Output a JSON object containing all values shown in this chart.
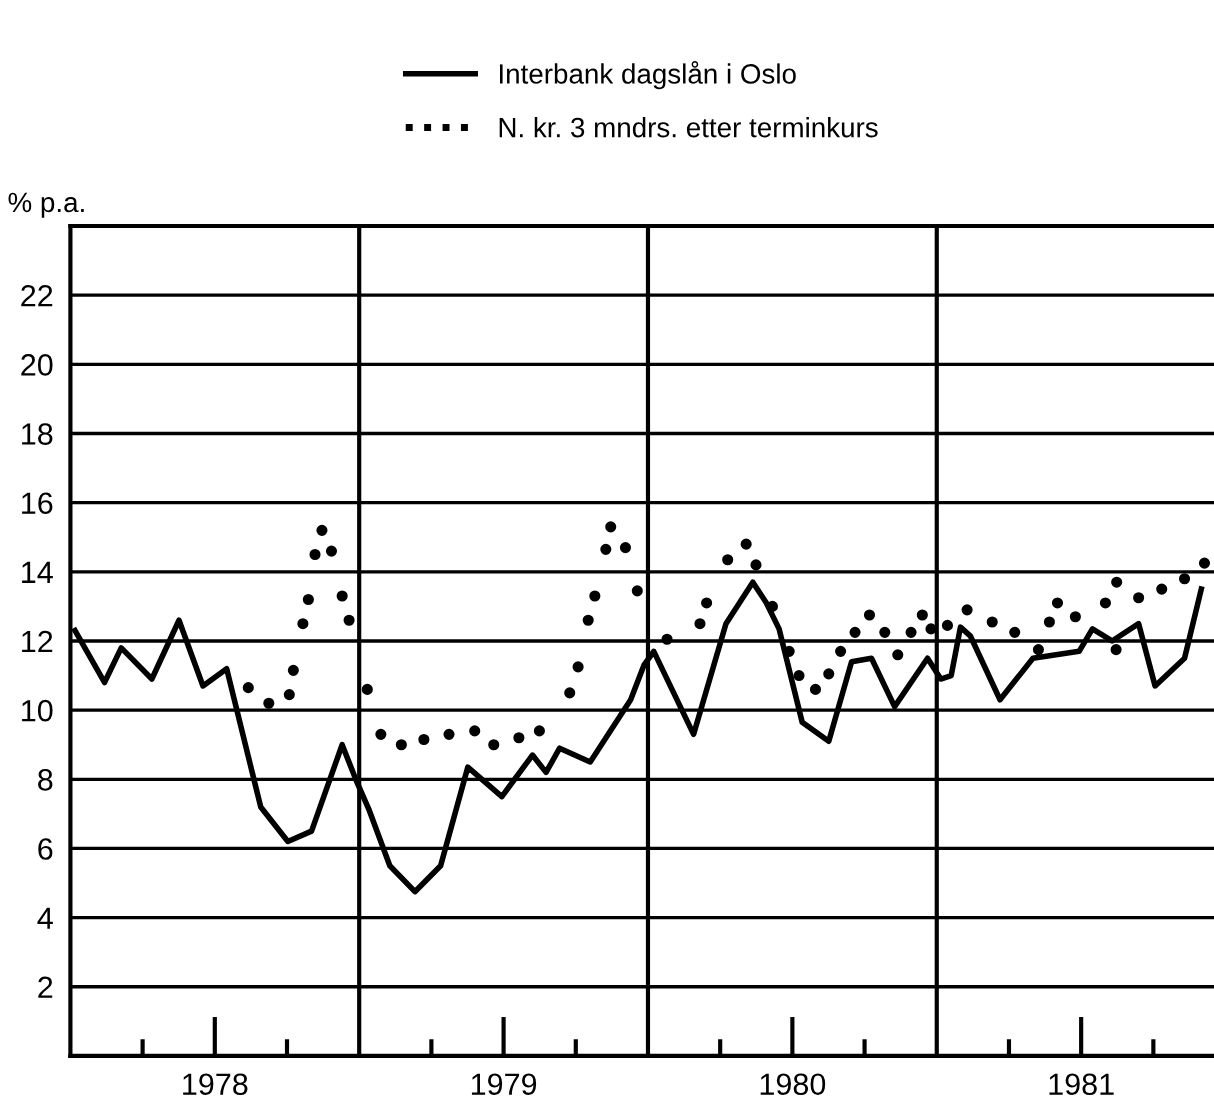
{
  "chart_data": {
    "type": "line",
    "ylabel": "% p.a.",
    "legend": "top",
    "xlim": [
      1978,
      1981.96
    ],
    "ylim": [
      0,
      24
    ],
    "xticks": [
      {
        "value": 1978.25,
        "label": null
      },
      {
        "value": 1978.5,
        "label": "1978"
      },
      {
        "value": 1978.75,
        "label": null
      },
      {
        "value": 1979.25,
        "label": null
      },
      {
        "value": 1979.5,
        "label": "1979"
      },
      {
        "value": 1979.75,
        "label": null
      },
      {
        "value": 1980.25,
        "label": null
      },
      {
        "value": 1980.5,
        "label": "1980"
      },
      {
        "value": 1980.75,
        "label": null
      },
      {
        "value": 1981.25,
        "label": null
      },
      {
        "value": 1981.5,
        "label": "1981"
      },
      {
        "value": 1981.75,
        "label": null
      }
    ],
    "yticks": [
      2,
      4,
      6,
      8,
      10,
      12,
      14,
      16,
      18,
      20,
      22
    ],
    "grid": "y",
    "ref_lines": [
      {
        "axis": "x",
        "value": 1979,
        "color": "#000000"
      },
      {
        "axis": "x",
        "value": 1980,
        "color": "#000000"
      },
      {
        "axis": "x",
        "value": 1981,
        "color": "#000000"
      }
    ],
    "series": [
      {
        "name": "Interbank dagslån i Oslo",
        "color": "#000000",
        "line_style": "solid",
        "marker": "none",
        "x": [
          1978.016,
          1978.118,
          1978.176,
          1978.282,
          1978.376,
          1978.459,
          1978.541,
          1978.659,
          1978.753,
          1978.835,
          1978.941,
          1978.988,
          1979.035,
          1979.106,
          1979.193,
          1979.282,
          1979.376,
          1979.494,
          1979.6,
          1979.647,
          1979.694,
          1979.8,
          1979.94,
          1979.986,
          1980.02,
          1980.158,
          1980.27,
          1980.363,
          1980.41,
          1980.454,
          1980.534,
          1980.626,
          1980.705,
          1980.774,
          1980.854,
          1980.968,
          1981.014,
          1981.05,
          1981.082,
          1981.116,
          1981.219,
          1981.333,
          1981.493,
          1981.539,
          1981.607,
          1981.699,
          1981.756,
          1981.858,
          1981.916
        ],
        "values": [
          12.3,
          10.8,
          11.8,
          10.9,
          12.6,
          10.7,
          11.2,
          7.2,
          6.2,
          6.5,
          9.0,
          8.0,
          7.1,
          5.5,
          4.75,
          5.5,
          8.35,
          7.5,
          8.7,
          8.2,
          8.9,
          8.5,
          10.3,
          11.3,
          11.7,
          9.3,
          12.5,
          13.7,
          13.1,
          12.35,
          9.65,
          9.1,
          11.4,
          11.5,
          10.1,
          11.5,
          10.9,
          11.0,
          12.4,
          12.15,
          10.3,
          11.5,
          11.7,
          12.35,
          12.0,
          12.5,
          10.7,
          11.5,
          13.5
        ]
      },
      {
        "name": "N. kr. 3 mndrs. etter terminkurs",
        "type": "scatter",
        "color": "#000000",
        "marker": "circle",
        "x": [
          1978.616,
          1978.687,
          1978.758,
          1978.772,
          1978.805,
          1978.824,
          1978.847,
          1978.871,
          1978.904,
          1978.941,
          1978.965,
          1979.028,
          1979.075,
          1979.146,
          1979.224,
          1979.311,
          1979.4,
          1979.466,
          1979.553,
          1979.624,
          1979.729,
          1979.758,
          1979.793,
          1979.816,
          1979.854,
          1979.871,
          1979.922,
          1979.963,
          1980.066,
          1980.18,
          1980.203,
          1980.276,
          1980.34,
          1980.374,
          1980.431,
          1980.489,
          1980.523,
          1980.58,
          1980.626,
          1980.667,
          1980.717,
          1980.767,
          1980.82,
          1980.865,
          1980.911,
          1980.95,
          1980.98,
          1981.037,
          1981.105,
          1981.192,
          1981.27,
          1981.352,
          1981.39,
          1981.418,
          1981.48,
          1981.584,
          1981.621,
          1981.623,
          1981.699,
          1981.779,
          1981.858,
          1981.927
        ],
        "values": [
          10.65,
          10.2,
          10.45,
          11.15,
          12.5,
          13.2,
          14.5,
          15.2,
          14.6,
          13.3,
          12.6,
          10.6,
          9.3,
          9.0,
          9.15,
          9.3,
          9.4,
          9.0,
          9.2,
          9.4,
          10.5,
          11.25,
          12.6,
          13.3,
          14.65,
          15.3,
          14.7,
          13.45,
          12.05,
          12.5,
          13.1,
          14.35,
          14.8,
          14.2,
          13.0,
          11.7,
          11.0,
          10.6,
          11.05,
          11.7,
          12.25,
          12.75,
          12.25,
          11.6,
          12.25,
          12.75,
          12.35,
          12.45,
          12.9,
          12.55,
          12.25,
          11.75,
          12.55,
          13.1,
          12.7,
          13.1,
          11.75,
          13.7,
          13.25,
          13.5,
          13.8,
          14.25
        ]
      }
    ]
  }
}
